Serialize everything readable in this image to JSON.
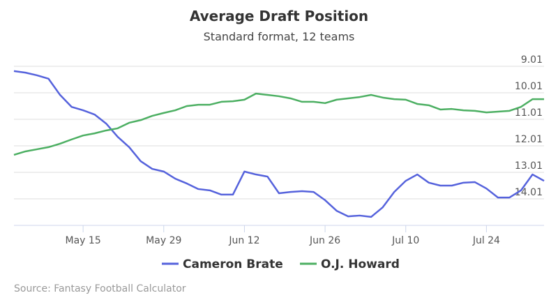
{
  "chart_data": {
    "type": "line",
    "title": "Average Draft Position",
    "subtitle": "Standard format, 12 teams",
    "source": "Source: Fantasy Football Calculator",
    "x": [
      123,
      125,
      127,
      129,
      131,
      133,
      135,
      137,
      139,
      141,
      143,
      145,
      147,
      149,
      151,
      153,
      155,
      157,
      159,
      161,
      163,
      165,
      167,
      169,
      171,
      173,
      175,
      177,
      179,
      181,
      183,
      185,
      187,
      189,
      191,
      193,
      195,
      197,
      199,
      201,
      203,
      205,
      207,
      209,
      211,
      213,
      215
    ],
    "xlim": [
      123,
      215
    ],
    "xticks": [
      {
        "value": 135,
        "label": "May 15"
      },
      {
        "value": 149,
        "label": "May 29"
      },
      {
        "value": 163,
        "label": "Jun 12"
      },
      {
        "value": 177,
        "label": "Jun 26"
      },
      {
        "value": 191,
        "label": "Jul 10"
      },
      {
        "value": 205,
        "label": "Jul 24"
      }
    ],
    "ylim": [
      9.01,
      15.01
    ],
    "yticks": [
      9.01,
      10.01,
      11.01,
      12.01,
      13.01,
      14.01
    ],
    "reversed": true,
    "grid": true,
    "legend": "bottom",
    "series": [
      {
        "name": "Cameron Brate",
        "color": "#5562dc",
        "values": [
          9.19,
          9.25,
          9.35,
          9.48,
          10.09,
          10.54,
          10.67,
          10.83,
          11.17,
          11.67,
          12.06,
          12.59,
          12.88,
          12.98,
          13.25,
          13.43,
          13.64,
          13.69,
          13.85,
          13.85,
          12.98,
          13.09,
          13.17,
          13.8,
          13.75,
          13.72,
          13.75,
          14.06,
          14.46,
          14.67,
          14.64,
          14.69,
          14.33,
          13.75,
          13.33,
          13.09,
          13.4,
          13.51,
          13.51,
          13.4,
          13.38,
          13.62,
          13.96,
          13.96,
          13.69,
          13.09,
          13.33
        ]
      },
      {
        "name": "O.J. Howard",
        "color": "#4caf62",
        "values": [
          12.35,
          12.22,
          12.14,
          12.06,
          11.93,
          11.77,
          11.62,
          11.54,
          11.43,
          11.35,
          11.14,
          11.04,
          10.88,
          10.77,
          10.67,
          10.51,
          10.46,
          10.46,
          10.35,
          10.33,
          10.27,
          10.04,
          10.09,
          10.14,
          10.22,
          10.35,
          10.35,
          10.4,
          10.27,
          10.22,
          10.17,
          10.09,
          10.19,
          10.25,
          10.27,
          10.43,
          10.48,
          10.64,
          10.62,
          10.67,
          10.69,
          10.75,
          10.72,
          10.69,
          10.54,
          10.25,
          10.25
        ]
      }
    ]
  }
}
